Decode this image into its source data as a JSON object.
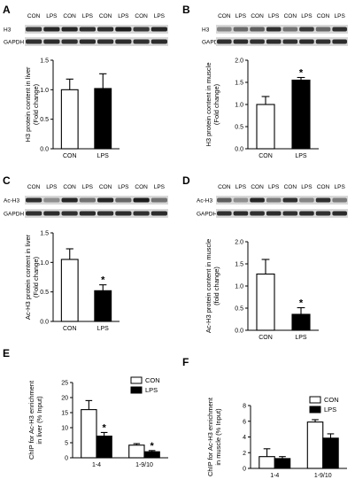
{
  "panels": {
    "A": {
      "letter": "A",
      "blot": {
        "lanes": [
          "CON",
          "LPS",
          "CON",
          "LPS",
          "CON",
          "LPS",
          "CON",
          "LPS"
        ],
        "bands": [
          {
            "name": "H3",
            "intensities": [
              0.75,
              0.85,
              0.85,
              0.8,
              0.8,
              0.9,
              0.75,
              0.85
            ]
          },
          {
            "name": "GAPDH",
            "intensities": [
              0.8,
              0.82,
              0.8,
              0.82,
              0.8,
              0.82,
              0.8,
              0.82
            ]
          }
        ]
      }
    },
    "B": {
      "letter": "B",
      "blot": {
        "lanes": [
          "CON",
          "LPS",
          "CON",
          "LPS",
          "CON",
          "LPS",
          "CON",
          "LPS"
        ],
        "bands": [
          {
            "name": "H3",
            "intensities": [
              0.35,
              0.5,
              0.55,
              0.8,
              0.45,
              0.75,
              0.5,
              0.8
            ]
          },
          {
            "name": "GAPDH",
            "intensities": [
              0.8,
              0.82,
              0.8,
              0.82,
              0.8,
              0.82,
              0.8,
              0.82
            ]
          }
        ]
      }
    },
    "C": {
      "letter": "C",
      "blot": {
        "lanes": [
          "CON",
          "LPS",
          "CON",
          "LPS",
          "CON",
          "LPS",
          "CON",
          "LPS"
        ],
        "bands": [
          {
            "name": "Ac-H3",
            "intensities": [
              0.8,
              0.3,
              0.85,
              0.45,
              0.85,
              0.5,
              0.9,
              0.45
            ]
          },
          {
            "name": "GAPDH",
            "intensities": [
              0.8,
              0.82,
              0.8,
              0.82,
              0.8,
              0.82,
              0.8,
              0.82
            ]
          }
        ]
      }
    },
    "D": {
      "letter": "D",
      "blot": {
        "lanes": [
          "CON",
          "LPS",
          "CON",
          "LPS",
          "CON",
          "LPS",
          "CON",
          "LPS"
        ],
        "bands": [
          {
            "name": "Ac-H3",
            "intensities": [
              0.55,
              0.3,
              0.85,
              0.4,
              0.8,
              0.35,
              0.8,
              0.4
            ]
          },
          {
            "name": "GAPDH",
            "intensities": [
              0.8,
              0.82,
              0.8,
              0.82,
              0.8,
              0.82,
              0.8,
              0.82
            ]
          }
        ]
      }
    },
    "E": {
      "letter": "E"
    },
    "F": {
      "letter": "F"
    }
  },
  "chart_data": [
    {
      "id": "A",
      "type": "bar",
      "ylabel": [
        "H3 protein content in liver",
        "(Fold change)"
      ],
      "ylim": [
        0,
        1.5
      ],
      "yticks": [
        "0.0",
        "0.5",
        "1.0",
        "1.5"
      ],
      "categories": [
        "CON",
        "LPS"
      ],
      "values": [
        1.0,
        1.02
      ],
      "errors": [
        0.18,
        0.25
      ],
      "fills": [
        "open",
        "filled"
      ],
      "significance": [
        "",
        ""
      ]
    },
    {
      "id": "B",
      "type": "bar",
      "ylabel": [
        "H3 protein content in muscle",
        "(Fold change)"
      ],
      "ylim": [
        0,
        2.0
      ],
      "yticks": [
        "0.0",
        "0.5",
        "1.0",
        "1.5",
        "2.0"
      ],
      "categories": [
        "CON",
        "LPS"
      ],
      "values": [
        1.0,
        1.55
      ],
      "errors": [
        0.18,
        0.06
      ],
      "fills": [
        "open",
        "filled"
      ],
      "significance": [
        "",
        "*"
      ]
    },
    {
      "id": "C",
      "type": "bar",
      "ylabel": [
        "Ac-H3 protein content in liver",
        "(Fold change)"
      ],
      "ylim": [
        0,
        1.5
      ],
      "yticks": [
        "0.0",
        "0.5",
        "1.0",
        "1.5"
      ],
      "categories": [
        "CON",
        "LPS"
      ],
      "values": [
        1.05,
        0.52
      ],
      "errors": [
        0.18,
        0.1
      ],
      "fills": [
        "open",
        "filled"
      ],
      "significance": [
        "",
        "*"
      ]
    },
    {
      "id": "D",
      "type": "bar",
      "ylabel": [
        "Ac-H3 protein content in muscle",
        "(fold change)"
      ],
      "ylim": [
        0,
        2.0
      ],
      "yticks": [
        "0.0",
        "0.5",
        "1.0",
        "1.5",
        "2.0"
      ],
      "categories": [
        "CON",
        "LPS"
      ],
      "values": [
        1.27,
        0.36
      ],
      "errors": [
        0.33,
        0.15
      ],
      "fills": [
        "open",
        "filled"
      ],
      "significance": [
        "",
        "*"
      ]
    },
    {
      "id": "E",
      "type": "bar",
      "ylabel": [
        "ChIP for Ac-H3  enrichment",
        "in liver (% Input)"
      ],
      "ylim": [
        0,
        25
      ],
      "yticks": [
        "0",
        "5",
        "10",
        "15",
        "20",
        "25"
      ],
      "categories": [
        "1-4",
        "1-9/10"
      ],
      "series": [
        {
          "name": "CON",
          "fill": "open",
          "values": [
            16.0,
            4.2
          ],
          "errors": [
            3.0,
            0.5
          ],
          "significance": [
            "",
            ""
          ]
        },
        {
          "name": "LPS",
          "fill": "filled",
          "values": [
            7.2,
            2.0
          ],
          "errors": [
            1.2,
            0.4
          ],
          "significance": [
            "*",
            "*"
          ]
        }
      ],
      "legend": "top-right"
    },
    {
      "id": "F",
      "type": "bar",
      "ylabel": [
        "ChIP for Ac-H3  enrichment",
        "in muscle (% Input)"
      ],
      "ylim": [
        0,
        8
      ],
      "yticks": [
        "0",
        "2",
        "4",
        "6",
        "8"
      ],
      "categories": [
        "1-4",
        "1-9/10"
      ],
      "series": [
        {
          "name": "CON",
          "fill": "open",
          "values": [
            1.5,
            5.9
          ],
          "errors": [
            1.0,
            0.3
          ],
          "significance": [
            "",
            ""
          ]
        },
        {
          "name": "LPS",
          "fill": "filled",
          "values": [
            1.25,
            3.85
          ],
          "errors": [
            0.25,
            0.55
          ],
          "significance": [
            "",
            ""
          ]
        }
      ],
      "legend": "top-right"
    }
  ]
}
